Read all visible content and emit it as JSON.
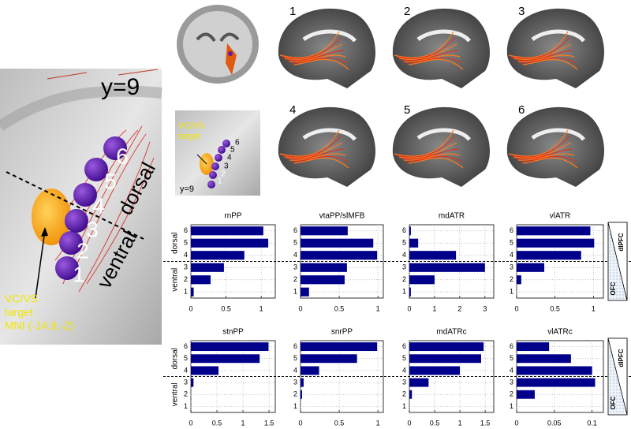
{
  "chart_data": [
    {
      "type": "bar",
      "orientation": "horizontal",
      "title": "rnPP",
      "categories": [
        "1",
        "2",
        "3",
        "4",
        "5",
        "6"
      ],
      "values": [
        0.04,
        0.28,
        0.47,
        0.76,
        1.1,
        1.03
      ],
      "color": "#00008b",
      "xlim": [
        0,
        1.2
      ],
      "xticks": [
        0,
        0.5,
        1
      ],
      "grid": true
    },
    {
      "type": "bar",
      "orientation": "horizontal",
      "title": "vtaPP/slMFB",
      "categories": [
        "1",
        "2",
        "3",
        "4",
        "5",
        "6"
      ],
      "values": [
        0.11,
        0.57,
        0.6,
        0.99,
        0.94,
        0.61
      ],
      "color": "#00008b",
      "xlim": [
        0,
        1.07
      ],
      "xticks": [
        0,
        0.5,
        1
      ],
      "grid": true
    },
    {
      "type": "bar",
      "orientation": "horizontal",
      "title": "mdATR",
      "categories": [
        "1",
        "2",
        "3",
        "4",
        "5",
        "6"
      ],
      "values": [
        0.06,
        1.0,
        3.0,
        1.85,
        0.35,
        0.06
      ],
      "color": "#00008b",
      "xlim": [
        0,
        3.35
      ],
      "xticks": [
        0,
        1,
        2,
        3
      ],
      "grid": true
    },
    {
      "type": "bar",
      "orientation": "horizontal",
      "title": "vlATR",
      "categories": [
        "1",
        "2",
        "3",
        "4",
        "5",
        "6"
      ],
      "values": [
        0,
        0.06,
        0.36,
        0.84,
        1.01,
        0.96
      ],
      "color": "#00008b",
      "xlim": [
        0,
        1.13
      ],
      "xticks": [
        0,
        0.5,
        1
      ],
      "grid": true
    },
    {
      "type": "bar",
      "orientation": "horizontal",
      "title": "stnPP",
      "categories": [
        "1",
        "2",
        "3",
        "4",
        "5",
        "6"
      ],
      "values": [
        0,
        0,
        0.05,
        0.53,
        1.32,
        1.49
      ],
      "color": "#00008b",
      "xlim": [
        0,
        1.62
      ],
      "xticks": [
        0,
        0.5,
        1,
        1.5
      ],
      "grid": true
    },
    {
      "type": "bar",
      "orientation": "horizontal",
      "title": "snrPP",
      "categories": [
        "1",
        "2",
        "3",
        "4",
        "5",
        "6"
      ],
      "values": [
        0,
        0.02,
        0.04,
        0.24,
        0.73,
        0.99
      ],
      "color": "#00008b",
      "xlim": [
        0,
        1.07
      ],
      "xticks": [
        0,
        0.5,
        1
      ],
      "grid": true
    },
    {
      "type": "bar",
      "orientation": "horizontal",
      "title": "mdATRc",
      "categories": [
        "1",
        "2",
        "3",
        "4",
        "5",
        "6"
      ],
      "values": [
        0,
        0.05,
        0.38,
        1.0,
        1.42,
        1.47
      ],
      "color": "#00008b",
      "xlim": [
        0,
        1.67
      ],
      "xticks": [
        0,
        0.5,
        1,
        1.5
      ],
      "grid": true
    },
    {
      "type": "bar",
      "orientation": "horizontal",
      "title": "vlATRc",
      "categories": [
        "1",
        "2",
        "3",
        "4",
        "5",
        "6"
      ],
      "values": [
        0,
        0.024,
        0.104,
        0.1,
        0.072,
        0.043
      ],
      "color": "#00008b",
      "xlim": [
        0,
        0.115
      ],
      "xticks": [
        0,
        0.05,
        0.1
      ],
      "grid": true
    }
  ],
  "figure": {
    "left_panel": {
      "slice": "y=9",
      "numbers": [
        "1",
        "2",
        "3",
        "4",
        "5",
        "6"
      ],
      "dorsal": "dorsal",
      "ventral": "ventral",
      "target": [
        "VC/VS",
        "target",
        "MNI (-14,9,-2)"
      ]
    },
    "inset": {
      "target": [
        "VC/VS",
        "target"
      ],
      "slice": "y=9",
      "numbers": [
        "1",
        "2",
        "3",
        "4",
        "5",
        "6"
      ]
    },
    "sagittal_labels": [
      "1",
      "2",
      "3",
      "4",
      "5",
      "6"
    ],
    "row_labels": [
      {
        "dorsal": "dorsal",
        "ventral": "ventral"
      },
      {
        "dorsal": "dorsal",
        "ventral": "ventral"
      }
    ],
    "gradient_labels": [
      {
        "top": "dlPFC",
        "bottom": "OFC"
      },
      {
        "top": "dlPFC",
        "bottom": "OFC"
      }
    ]
  }
}
